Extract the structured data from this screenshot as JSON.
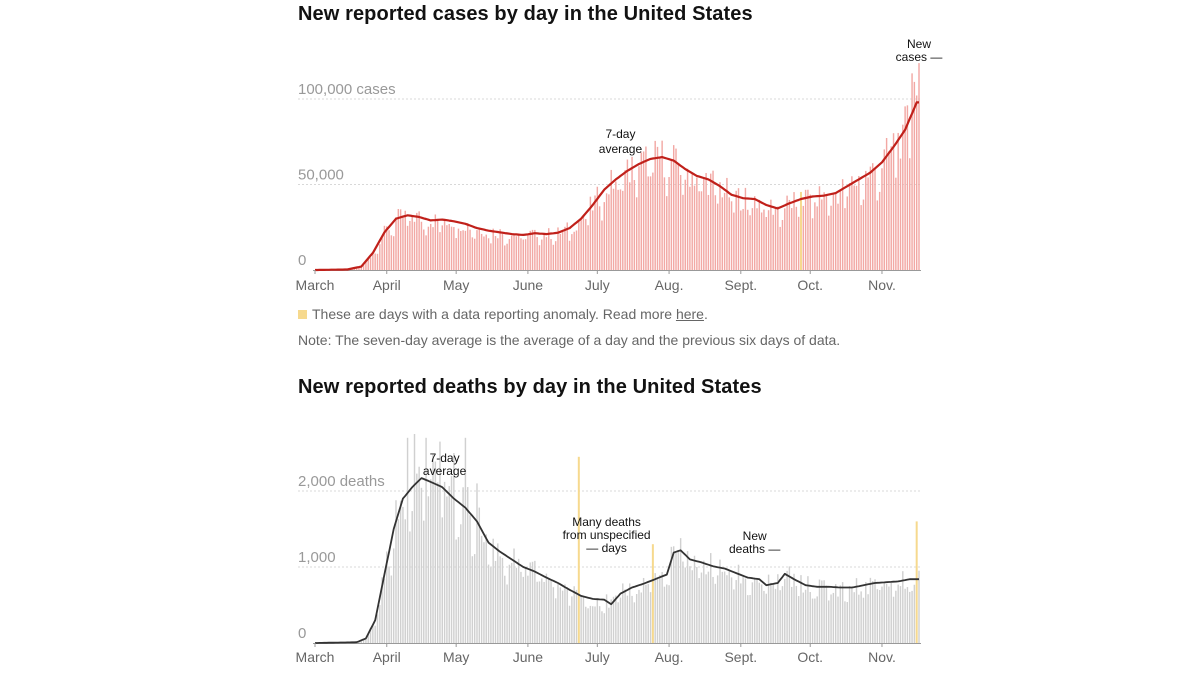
{
  "colors": {
    "cases_bar": "#f2a8a4",
    "cases_line": "#c0201a",
    "deaths_bar": "#d0d0d0",
    "deaths_line": "#333333",
    "anomaly": "#f6d98e",
    "grid": "#d8d8d8"
  },
  "notes": {
    "anomaly_text": "These are days with a data reporting anomaly. Read more",
    "anomaly_link": "here",
    "anomaly_end": ".",
    "seven_day": "Note: The seven-day average is the average of a day and the previous six days of data."
  },
  "chart_data": [
    {
      "type": "bar",
      "title": "New reported cases by day in the United States",
      "xlabel": "",
      "ylabel": "",
      "ylim": [
        0,
        120000
      ],
      "yticks": [
        {
          "value": 0,
          "label": "0"
        },
        {
          "value": 50000,
          "label": "50,000"
        },
        {
          "value": 100000,
          "label": "100,000 cases"
        }
      ],
      "xticks": [
        {
          "day": 0,
          "label": "March"
        },
        {
          "day": 31,
          "label": "April"
        },
        {
          "day": 61,
          "label": "May"
        },
        {
          "day": 92,
          "label": "June"
        },
        {
          "day": 122,
          "label": "July"
        },
        {
          "day": 153,
          "label": "Aug."
        },
        {
          "day": 184,
          "label": "Sept."
        },
        {
          "day": 214,
          "label": "Oct."
        },
        {
          "day": 245,
          "label": "Nov."
        }
      ],
      "avg_keypoints": [
        [
          0,
          0
        ],
        [
          14,
          300
        ],
        [
          20,
          2000
        ],
        [
          25,
          10000
        ],
        [
          30,
          22000
        ],
        [
          35,
          30000
        ],
        [
          40,
          32000
        ],
        [
          45,
          31000
        ],
        [
          50,
          29000
        ],
        [
          55,
          29500
        ],
        [
          60,
          28500
        ],
        [
          65,
          27000
        ],
        [
          70,
          24500
        ],
        [
          75,
          23000
        ],
        [
          80,
          22000
        ],
        [
          85,
          21000
        ],
        [
          90,
          20500
        ],
        [
          95,
          21500
        ],
        [
          100,
          21000
        ],
        [
          105,
          21800
        ],
        [
          110,
          24500
        ],
        [
          115,
          30000
        ],
        [
          120,
          38000
        ],
        [
          125,
          47000
        ],
        [
          130,
          53000
        ],
        [
          135,
          58000
        ],
        [
          140,
          62000
        ],
        [
          145,
          65000
        ],
        [
          150,
          66000
        ],
        [
          155,
          64000
        ],
        [
          160,
          59000
        ],
        [
          165,
          55000
        ],
        [
          170,
          53000
        ],
        [
          175,
          49000
        ],
        [
          180,
          44000
        ],
        [
          185,
          42000
        ],
        [
          190,
          41500
        ],
        [
          195,
          38000
        ],
        [
          200,
          36000
        ],
        [
          205,
          39000
        ],
        [
          210,
          41500
        ],
        [
          215,
          43000
        ],
        [
          220,
          43500
        ],
        [
          225,
          45000
        ],
        [
          230,
          49000
        ],
        [
          235,
          53000
        ],
        [
          240,
          57000
        ],
        [
          245,
          63000
        ],
        [
          250,
          72000
        ],
        [
          255,
          82000
        ],
        [
          260,
          98000
        ]
      ],
      "bar_spikes": [
        [
          261,
          121000
        ],
        [
          259,
          110000
        ],
        [
          258,
          115000
        ],
        [
          254,
          85000
        ],
        [
          250,
          80000
        ],
        [
          156,
          71000
        ],
        [
          148,
          72000
        ]
      ],
      "anomaly_days": [
        210
      ],
      "annotations": [
        {
          "text": [
            "7-day",
            "average"
          ],
          "day": 132
        },
        {
          "text": [
            "New",
            "cases —"
          ],
          "day": 261
        }
      ]
    },
    {
      "type": "bar",
      "title": "New reported deaths by day in the United States",
      "xlabel": "",
      "ylabel": "",
      "ylim": [
        0,
        2700
      ],
      "yticks": [
        {
          "value": 0,
          "label": "0"
        },
        {
          "value": 1000,
          "label": "1,000"
        },
        {
          "value": 2000,
          "label": "2,000 deaths"
        }
      ],
      "xticks": [
        {
          "day": 0,
          "label": "March"
        },
        {
          "day": 31,
          "label": "April"
        },
        {
          "day": 61,
          "label": "May"
        },
        {
          "day": 92,
          "label": "June"
        },
        {
          "day": 122,
          "label": "July"
        },
        {
          "day": 153,
          "label": "Aug."
        },
        {
          "day": 184,
          "label": "Sept."
        },
        {
          "day": 214,
          "label": "Oct."
        },
        {
          "day": 245,
          "label": "Nov."
        }
      ],
      "avg_keypoints": [
        [
          0,
          0
        ],
        [
          18,
          10
        ],
        [
          22,
          60
        ],
        [
          26,
          300
        ],
        [
          30,
          900
        ],
        [
          34,
          1500
        ],
        [
          38,
          1900
        ],
        [
          42,
          2050
        ],
        [
          46,
          2170
        ],
        [
          50,
          2120
        ],
        [
          55,
          2050
        ],
        [
          60,
          1900
        ],
        [
          65,
          1780
        ],
        [
          70,
          1600
        ],
        [
          75,
          1320
        ],
        [
          80,
          1200
        ],
        [
          85,
          1100
        ],
        [
          90,
          1000
        ],
        [
          95,
          940
        ],
        [
          100,
          860
        ],
        [
          105,
          790
        ],
        [
          110,
          700
        ],
        [
          115,
          620
        ],
        [
          120,
          580
        ],
        [
          125,
          570
        ],
        [
          128,
          510
        ],
        [
          132,
          650
        ],
        [
          137,
          730
        ],
        [
          142,
          780
        ],
        [
          147,
          840
        ],
        [
          152,
          900
        ],
        [
          155,
          1190
        ],
        [
          158,
          1220
        ],
        [
          162,
          1100
        ],
        [
          167,
          1060
        ],
        [
          172,
          1010
        ],
        [
          177,
          980
        ],
        [
          182,
          920
        ],
        [
          187,
          860
        ],
        [
          192,
          840
        ],
        [
          195,
          760
        ],
        [
          200,
          790
        ],
        [
          203,
          910
        ],
        [
          207,
          840
        ],
        [
          212,
          760
        ],
        [
          217,
          740
        ],
        [
          222,
          740
        ],
        [
          227,
          730
        ],
        [
          232,
          730
        ],
        [
          237,
          760
        ],
        [
          242,
          790
        ],
        [
          247,
          800
        ],
        [
          252,
          810
        ],
        [
          257,
          840
        ],
        [
          260,
          840
        ]
      ],
      "bar_spikes": [
        [
          40,
          2700
        ],
        [
          43,
          2750
        ],
        [
          48,
          2700
        ],
        [
          54,
          2650
        ],
        [
          65,
          2700
        ],
        [
          60,
          2500
        ],
        [
          70,
          2100
        ]
      ],
      "anomaly_days": [
        114,
        146,
        260
      ],
      "anomaly_values": [
        2450,
        1300,
        1600
      ],
      "annotations": [
        {
          "text": [
            "7-day",
            "average"
          ],
          "day": 56
        },
        {
          "text": [
            "Many deaths",
            "from unspecified",
            "— days"
          ],
          "day": 126
        },
        {
          "text": [
            "New",
            "deaths —"
          ],
          "day": 190
        }
      ]
    }
  ]
}
